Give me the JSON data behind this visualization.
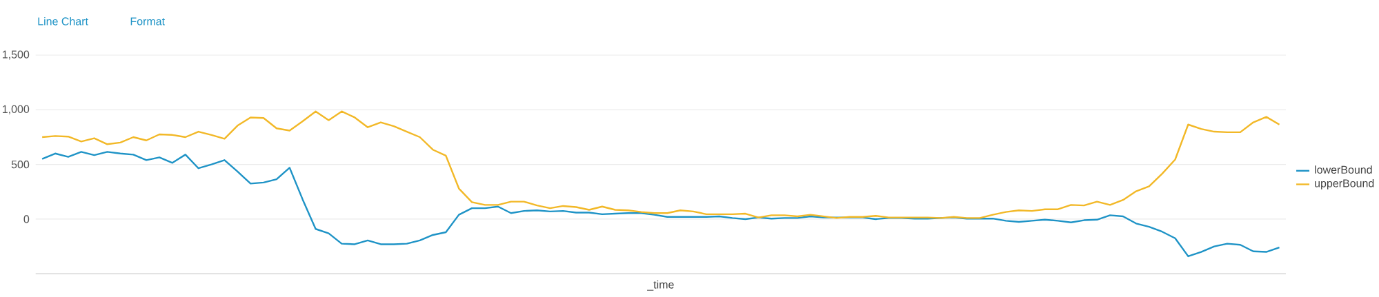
{
  "chart_data": {
    "type": "line",
    "xlabel": "_time",
    "annotations": [
      "Line Chart",
      "Format"
    ],
    "categories": [
      null,
      null,
      null,
      null,
      null,
      null,
      null,
      null,
      null,
      null,
      null,
      null,
      null,
      null,
      null,
      null,
      null,
      null,
      null,
      null,
      null,
      null,
      null,
      null,
      null,
      null,
      null,
      null,
      null,
      null,
      null,
      null,
      null,
      null,
      null,
      null,
      null,
      null,
      null,
      null,
      null,
      null,
      null,
      null,
      null,
      null,
      null,
      null,
      null,
      null,
      null,
      null,
      null,
      null,
      null,
      null,
      null,
      null,
      null,
      null,
      null,
      null,
      null,
      null,
      null,
      null,
      null,
      null,
      null,
      null,
      null,
      null,
      null,
      null,
      null,
      null,
      null,
      null,
      null,
      null,
      null,
      null,
      null,
      null,
      null,
      null,
      null,
      null,
      null,
      null,
      null,
      null,
      null,
      null,
      null,
      null
    ],
    "series": [
      {
        "name": "lowerBound",
        "color": "#1e93c6",
        "values": [
          550,
          600,
          570,
          615,
          585,
          615,
          600,
          590,
          540,
          565,
          515,
          590,
          465,
          500,
          540,
          435,
          325,
          335,
          365,
          470,
          180,
          -90,
          -130,
          -225,
          -230,
          -195,
          -230,
          -230,
          -225,
          -195,
          -145,
          -120,
          40,
          100,
          100,
          115,
          55,
          75,
          80,
          70,
          75,
          60,
          60,
          45,
          50,
          55,
          55,
          40,
          20,
          20,
          20,
          20,
          25,
          10,
          0,
          15,
          5,
          10,
          10,
          25,
          15,
          15,
          15,
          15,
          0,
          10,
          10,
          5,
          5,
          10,
          15,
          5,
          5,
          5,
          -15,
          -25,
          -15,
          -5,
          -15,
          -30,
          -10,
          -5,
          35,
          25,
          -40,
          -70,
          -115,
          -175,
          -340,
          -300,
          -250,
          -225,
          -235,
          -295,
          -300,
          -260
        ]
      },
      {
        "name": "upperBound",
        "color": "#f2b827",
        "values": [
          750,
          760,
          755,
          710,
          740,
          685,
          700,
          750,
          720,
          775,
          770,
          750,
          800,
          770,
          735,
          855,
          930,
          925,
          830,
          810,
          895,
          985,
          905,
          985,
          930,
          840,
          885,
          850,
          800,
          750,
          635,
          580,
          280,
          155,
          130,
          130,
          160,
          160,
          125,
          100,
          120,
          110,
          85,
          115,
          85,
          80,
          65,
          55,
          55,
          80,
          70,
          45,
          45,
          45,
          50,
          15,
          35,
          35,
          25,
          40,
          25,
          10,
          20,
          20,
          30,
          15,
          15,
          15,
          15,
          10,
          20,
          10,
          10,
          40,
          65,
          80,
          75,
          90,
          90,
          130,
          125,
          160,
          130,
          175,
          255,
          300,
          415,
          545,
          865,
          825,
          800,
          795,
          795,
          885,
          935,
          865
        ]
      }
    ],
    "ylim": [
      -500,
      1500
    ],
    "yticks": [
      0,
      500,
      {
        "value": 1000,
        "label": "1,000"
      },
      {
        "value": 1500,
        "label": "1,500"
      }
    ],
    "grid": "y",
    "legend": "right",
    "marker": "none",
    "line_style": "solid"
  }
}
